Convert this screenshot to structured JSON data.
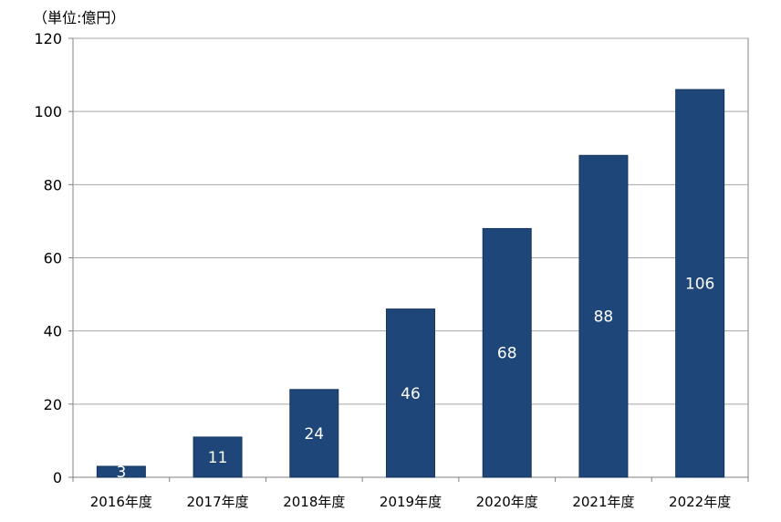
{
  "chart_data": {
    "type": "bar",
    "unit_label": "（単位:億円）",
    "categories": [
      "2016年度",
      "2017年度",
      "2018年度",
      "2019年度",
      "2020年度",
      "2021年度",
      "2022年度"
    ],
    "values": [
      3,
      11,
      24,
      46,
      68,
      88,
      106
    ],
    "data_labels": [
      "3",
      "11",
      "24",
      "46",
      "68",
      "88",
      "106"
    ],
    "y_ticks": [
      0,
      20,
      40,
      60,
      80,
      100,
      120
    ],
    "ylim": [
      0,
      120
    ],
    "grid": true,
    "legend": "none",
    "colors": {
      "bar": "#1f4678",
      "bar_edge": "#16365e",
      "grid": "#a6a6a6",
      "axis": "#808080",
      "label": "#ffffff"
    }
  }
}
